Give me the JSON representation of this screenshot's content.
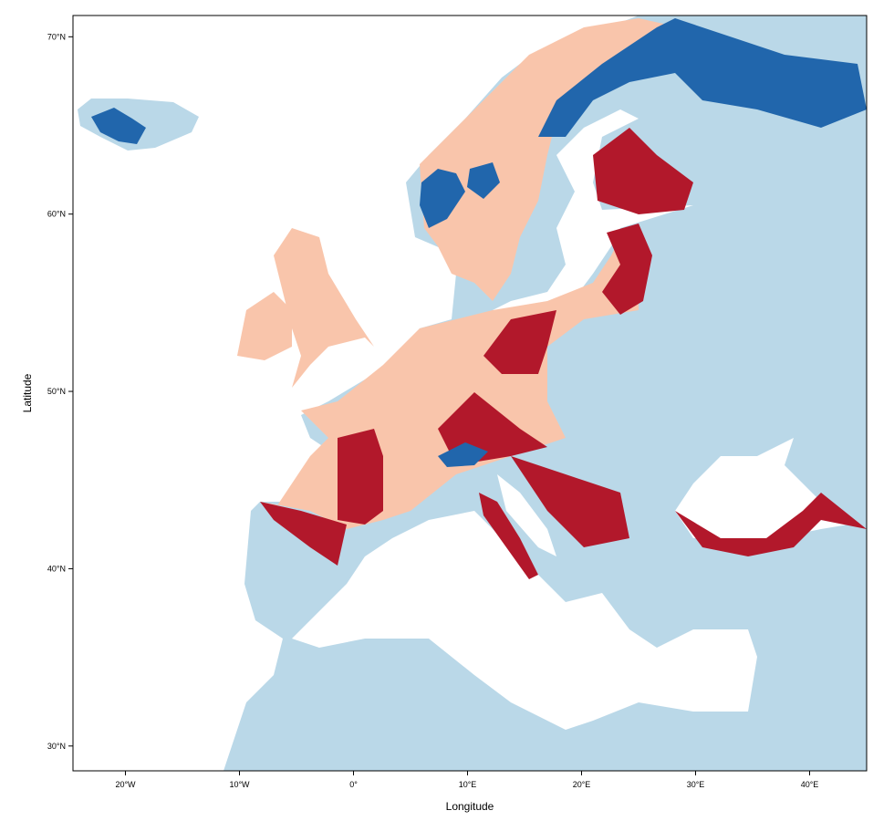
{
  "map": {
    "xlabel": "Longitude",
    "ylabel": "Latitude",
    "xlim": [
      -24.6,
      45
    ],
    "ylim": [
      28.6,
      71.2
    ],
    "xticks": [
      {
        "value": -20,
        "label": "20°W"
      },
      {
        "value": -10,
        "label": "10°W"
      },
      {
        "value": 0,
        "label": "0°"
      },
      {
        "value": 10,
        "label": "10°E"
      },
      {
        "value": 20,
        "label": "20°E"
      },
      {
        "value": 30,
        "label": "30°E"
      },
      {
        "value": 40,
        "label": "40°E"
      }
    ],
    "yticks": [
      {
        "value": 30,
        "label": "30°N"
      },
      {
        "value": 40,
        "label": "40°N"
      },
      {
        "value": 50,
        "label": "50°N"
      },
      {
        "value": 60,
        "label": "60°N"
      },
      {
        "value": 70,
        "label": "70°N"
      }
    ]
  }
}
